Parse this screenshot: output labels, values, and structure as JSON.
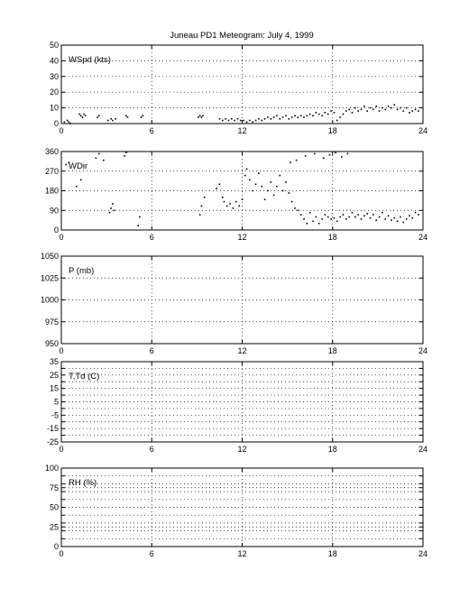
{
  "title": "Juneau PD1 Meteogram:      July  4, 1999",
  "chart_data": [
    {
      "type": "scatter",
      "label": "WSpd (kts)",
      "xlim": [
        0,
        24
      ],
      "ylim": [
        0,
        50
      ],
      "x_ticks": [
        "0",
        "6",
        "12",
        "18",
        "24"
      ],
      "y_ticks": [
        "0",
        "10",
        "20",
        "30",
        "40",
        "50"
      ],
      "grid": true,
      "points": [
        [
          0.2,
          1
        ],
        [
          0.4,
          2
        ],
        [
          0.5,
          1
        ],
        [
          0.6,
          0
        ],
        [
          1.2,
          6
        ],
        [
          1.3,
          5
        ],
        [
          1.4,
          4
        ],
        [
          1.5,
          6
        ],
        [
          1.6,
          5
        ],
        [
          2.4,
          4
        ],
        [
          2.5,
          5
        ],
        [
          3.1,
          2
        ],
        [
          3.3,
          3
        ],
        [
          3.4,
          2
        ],
        [
          3.6,
          3
        ],
        [
          4.3,
          5
        ],
        [
          4.4,
          4
        ],
        [
          5.3,
          4
        ],
        [
          5.4,
          5
        ],
        [
          9.1,
          4
        ],
        [
          9.2,
          5
        ],
        [
          9.3,
          4
        ],
        [
          9.4,
          5
        ],
        [
          10.5,
          3
        ],
        [
          10.7,
          2
        ],
        [
          10.9,
          3
        ],
        [
          11.1,
          2
        ],
        [
          11.3,
          3
        ],
        [
          11.5,
          2
        ],
        [
          11.7,
          3
        ],
        [
          11.9,
          2
        ],
        [
          12.1,
          2
        ],
        [
          12.3,
          1
        ],
        [
          12.5,
          2
        ],
        [
          12.7,
          1
        ],
        [
          12.9,
          2
        ],
        [
          13.1,
          3
        ],
        [
          13.3,
          2
        ],
        [
          13.5,
          3
        ],
        [
          13.7,
          4
        ],
        [
          13.9,
          3
        ],
        [
          14.1,
          4
        ],
        [
          14.3,
          5
        ],
        [
          14.5,
          3
        ],
        [
          14.7,
          4
        ],
        [
          14.9,
          5
        ],
        [
          15.1,
          3
        ],
        [
          15.3,
          4
        ],
        [
          15.5,
          5
        ],
        [
          15.7,
          4
        ],
        [
          15.9,
          5
        ],
        [
          16.1,
          4
        ],
        [
          16.3,
          5
        ],
        [
          16.5,
          6
        ],
        [
          16.7,
          5
        ],
        [
          16.9,
          7
        ],
        [
          17.1,
          6
        ],
        [
          17.3,
          5
        ],
        [
          17.5,
          7
        ],
        [
          17.7,
          6
        ],
        [
          17.9,
          8
        ],
        [
          18.1,
          7
        ],
        [
          18.3,
          2
        ],
        [
          18.5,
          4
        ],
        [
          18.7,
          6
        ],
        [
          18.9,
          8
        ],
        [
          19.1,
          9
        ],
        [
          19.3,
          7
        ],
        [
          19.5,
          10
        ],
        [
          19.7,
          8
        ],
        [
          19.9,
          9
        ],
        [
          20.1,
          11
        ],
        [
          20.3,
          8
        ],
        [
          20.5,
          10
        ],
        [
          20.7,
          9
        ],
        [
          20.9,
          11
        ],
        [
          21.1,
          8
        ],
        [
          21.3,
          10
        ],
        [
          21.5,
          9
        ],
        [
          21.7,
          11
        ],
        [
          21.9,
          10
        ],
        [
          22.1,
          12
        ],
        [
          22.3,
          9
        ],
        [
          22.5,
          10
        ],
        [
          22.7,
          8
        ],
        [
          22.9,
          10
        ],
        [
          23.1,
          7
        ],
        [
          23.3,
          8
        ],
        [
          23.5,
          9
        ],
        [
          23.7,
          8
        ]
      ]
    },
    {
      "type": "scatter",
      "label": "WDir",
      "xlim": [
        0,
        24
      ],
      "ylim": [
        0,
        360
      ],
      "x_ticks": [
        "0",
        "6",
        "12",
        "18",
        "24"
      ],
      "y_ticks": [
        "0",
        "90",
        "180",
        "270",
        "360"
      ],
      "grid": true,
      "points": [
        [
          0.3,
          300
        ],
        [
          0.5,
          310
        ],
        [
          1.0,
          200
        ],
        [
          1.3,
          230
        ],
        [
          2.3,
          330
        ],
        [
          2.5,
          350
        ],
        [
          2.8,
          320
        ],
        [
          3.2,
          80
        ],
        [
          3.3,
          100
        ],
        [
          3.4,
          120
        ],
        [
          3.5,
          90
        ],
        [
          4.2,
          340
        ],
        [
          4.3,
          355
        ],
        [
          5.1,
          20
        ],
        [
          5.2,
          60
        ],
        [
          9.2,
          70
        ],
        [
          9.3,
          110
        ],
        [
          9.5,
          150
        ],
        [
          10.3,
          190
        ],
        [
          10.5,
          210
        ],
        [
          10.7,
          150
        ],
        [
          10.8,
          130
        ],
        [
          11.0,
          110
        ],
        [
          11.2,
          120
        ],
        [
          11.4,
          100
        ],
        [
          11.6,
          130
        ],
        [
          11.8,
          110
        ],
        [
          12.0,
          140
        ],
        [
          12.2,
          250
        ],
        [
          12.3,
          280
        ],
        [
          12.5,
          230
        ],
        [
          12.7,
          180
        ],
        [
          12.9,
          210
        ],
        [
          13.1,
          260
        ],
        [
          13.3,
          200
        ],
        [
          13.5,
          140
        ],
        [
          13.7,
          180
        ],
        [
          13.9,
          220
        ],
        [
          14.1,
          160
        ],
        [
          14.3,
          200
        ],
        [
          14.5,
          250
        ],
        [
          14.7,
          180
        ],
        [
          14.9,
          220
        ],
        [
          15.1,
          170
        ],
        [
          15.3,
          130
        ],
        [
          15.5,
          100
        ],
        [
          15.7,
          90
        ],
        [
          15.9,
          70
        ],
        [
          16.1,
          50
        ],
        [
          16.3,
          30
        ],
        [
          16.5,
          80
        ],
        [
          16.7,
          40
        ],
        [
          16.9,
          60
        ],
        [
          17.1,
          30
        ],
        [
          17.3,
          50
        ],
        [
          17.5,
          70
        ],
        [
          17.7,
          60
        ],
        [
          17.9,
          50
        ],
        [
          18.1,
          55
        ],
        [
          18.3,
          40
        ],
        [
          18.5,
          60
        ],
        [
          18.7,
          70
        ],
        [
          18.9,
          50
        ],
        [
          19.1,
          60
        ],
        [
          19.3,
          80
        ],
        [
          19.5,
          60
        ],
        [
          19.7,
          70
        ],
        [
          19.9,
          50
        ],
        [
          20.1,
          65
        ],
        [
          20.3,
          75
        ],
        [
          20.5,
          55
        ],
        [
          20.7,
          70
        ],
        [
          20.9,
          45
        ],
        [
          21.1,
          60
        ],
        [
          21.3,
          80
        ],
        [
          21.5,
          50
        ],
        [
          21.7,
          65
        ],
        [
          21.9,
          45
        ],
        [
          22.1,
          55
        ],
        [
          22.3,
          40
        ],
        [
          22.5,
          60
        ],
        [
          22.7,
          35
        ],
        [
          22.9,
          50
        ],
        [
          23.1,
          65
        ],
        [
          23.3,
          55
        ],
        [
          23.5,
          80
        ],
        [
          23.7,
          70
        ],
        [
          15.2,
          310
        ],
        [
          15.6,
          320
        ],
        [
          16.2,
          340
        ],
        [
          16.8,
          350
        ],
        [
          17.4,
          330
        ],
        [
          17.8,
          345
        ],
        [
          18.2,
          355
        ],
        [
          18.6,
          335
        ],
        [
          19.0,
          350
        ]
      ]
    },
    {
      "type": "scatter",
      "label": "P (mb)",
      "xlim": [
        0,
        24
      ],
      "ylim": [
        950,
        1050
      ],
      "x_ticks": [
        "0",
        "6",
        "12",
        "18",
        "24"
      ],
      "y_ticks": [
        "950",
        "975",
        "1000",
        "1025",
        "1050"
      ],
      "grid": true,
      "points": []
    },
    {
      "type": "scatter",
      "label": "T,Td (C)",
      "xlim": [
        0,
        24
      ],
      "ylim": [
        -25,
        35
      ],
      "x_ticks": [
        "0",
        "6",
        "12",
        "18",
        "24"
      ],
      "y_ticks": [
        "-25",
        "-15",
        "-5",
        "5",
        "15",
        "25",
        "35"
      ],
      "extra_y_ticks": [
        "-20",
        "-10",
        "0",
        "10",
        "20",
        "30"
      ],
      "grid": true,
      "points": []
    },
    {
      "type": "scatter",
      "label": "RH (%)",
      "xlim": [
        0,
        24
      ],
      "ylim": [
        0,
        100
      ],
      "x_ticks": [
        "0",
        "6",
        "12",
        "18",
        "24"
      ],
      "y_ticks": [
        "0",
        "25",
        "50",
        "75",
        "100"
      ],
      "extra_y_ticks": [
        "10",
        "20",
        "30",
        "40",
        "60",
        "70",
        "80",
        "90"
      ],
      "grid": true,
      "points": []
    }
  ]
}
